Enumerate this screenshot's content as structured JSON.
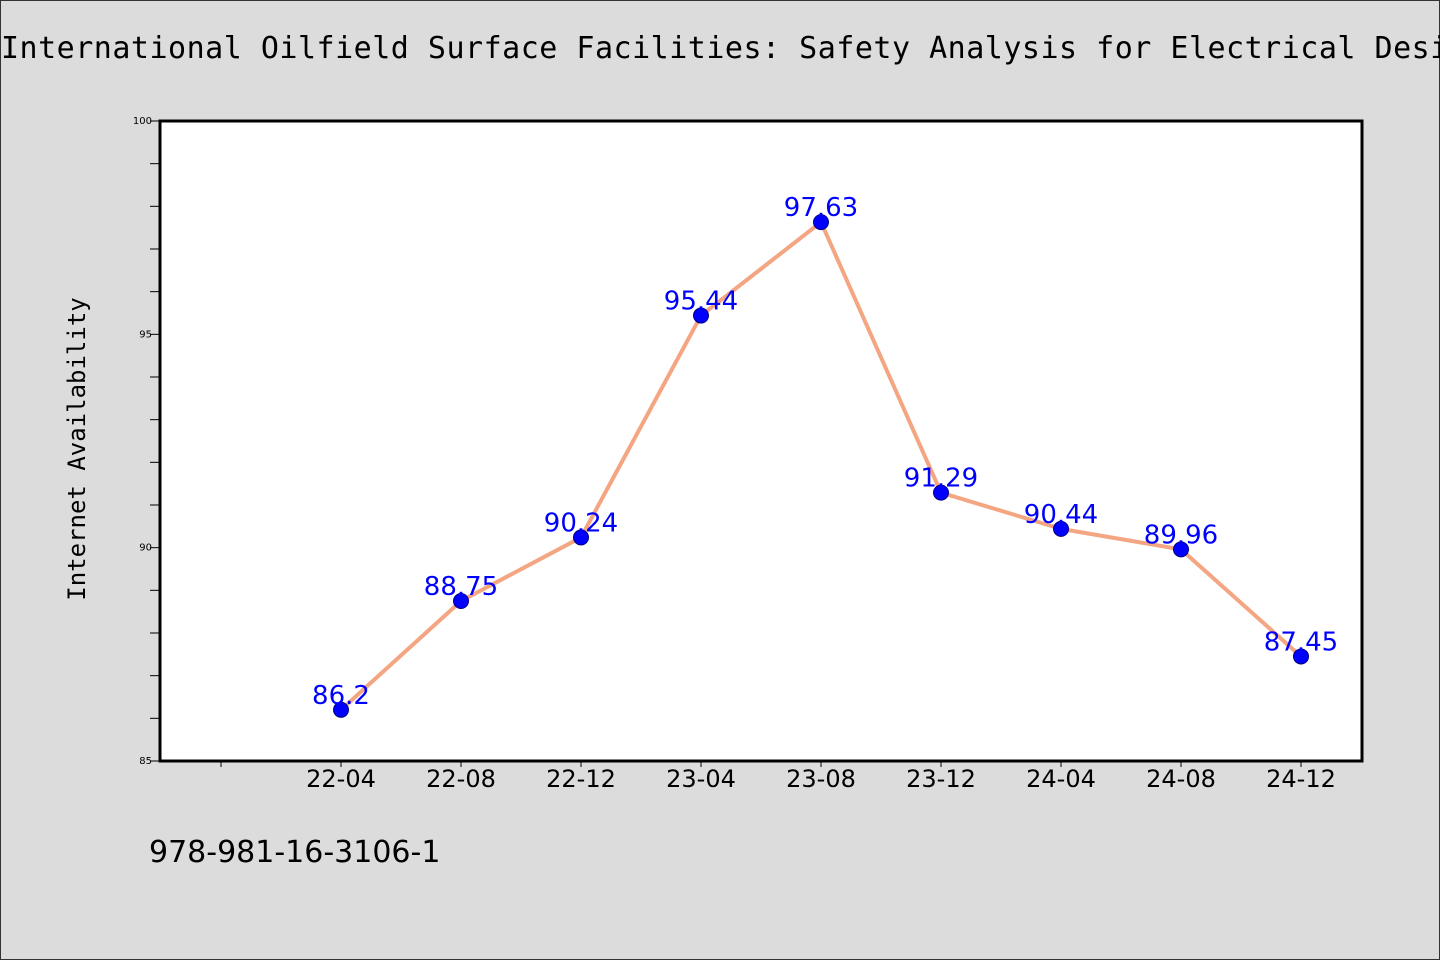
{
  "chart_data": {
    "type": "line",
    "title": "International Oilfield Surface Facilities: Safety Analysis for Electrical Design",
    "xlabel": "",
    "ylabel": "Internet Availability",
    "categories": [
      "22-04",
      "22-08",
      "22-12",
      "23-04",
      "23-08",
      "23-12",
      "24-04",
      "24-08",
      "24-12"
    ],
    "series": [
      {
        "values": [
          86.2,
          88.75,
          90.24,
          95.44,
          97.63,
          91.29,
          90.44,
          89.96,
          87.45
        ]
      }
    ],
    "data_labels": [
      "86.2",
      "88.75",
      "90.24",
      "95.44",
      "97.63",
      "91.29",
      "90.44",
      "89.96",
      "87.45"
    ],
    "ylim": [
      85,
      100
    ],
    "yticks": [
      "85",
      "90",
      "95",
      "100"
    ],
    "grid": false,
    "colors": {
      "line": "#f4a582",
      "marker": "#0000ff",
      "label": "#0000ff",
      "background": "#dcdcdc",
      "plot_background": "#ffffff"
    }
  },
  "footer": {
    "isbn": "978-981-16-3106-1"
  }
}
